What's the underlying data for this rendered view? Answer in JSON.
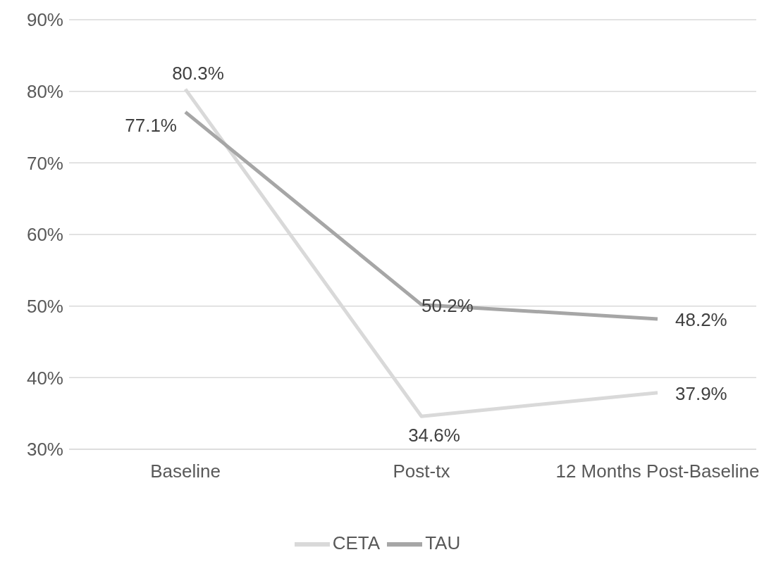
{
  "chart_data": {
    "type": "line",
    "categories": [
      "Baseline",
      "Post-tx",
      "12 Months Post-Baseline"
    ],
    "series": [
      {
        "name": "CETA",
        "color": "#d9d9d9",
        "values": [
          80.3,
          34.6,
          37.9
        ],
        "value_labels": [
          "80.3%",
          "34.6%",
          "37.9%"
        ]
      },
      {
        "name": "TAU",
        "color": "#a6a6a6",
        "values": [
          77.1,
          50.2,
          48.2
        ],
        "value_labels": [
          "77.1%",
          "50.2%",
          "48.2%"
        ]
      }
    ],
    "ylim": [
      30,
      90
    ],
    "yticks": [
      {
        "value": 30,
        "label": "30%"
      },
      {
        "value": 40,
        "label": "40%"
      },
      {
        "value": 50,
        "label": "50%"
      },
      {
        "value": 60,
        "label": "60%"
      },
      {
        "value": 70,
        "label": "70%"
      },
      {
        "value": 80,
        "label": "80%"
      },
      {
        "value": 90,
        "label": "90%"
      }
    ],
    "grid": "y",
    "legend": "bottom",
    "marker": "none",
    "line_style": "solid"
  }
}
